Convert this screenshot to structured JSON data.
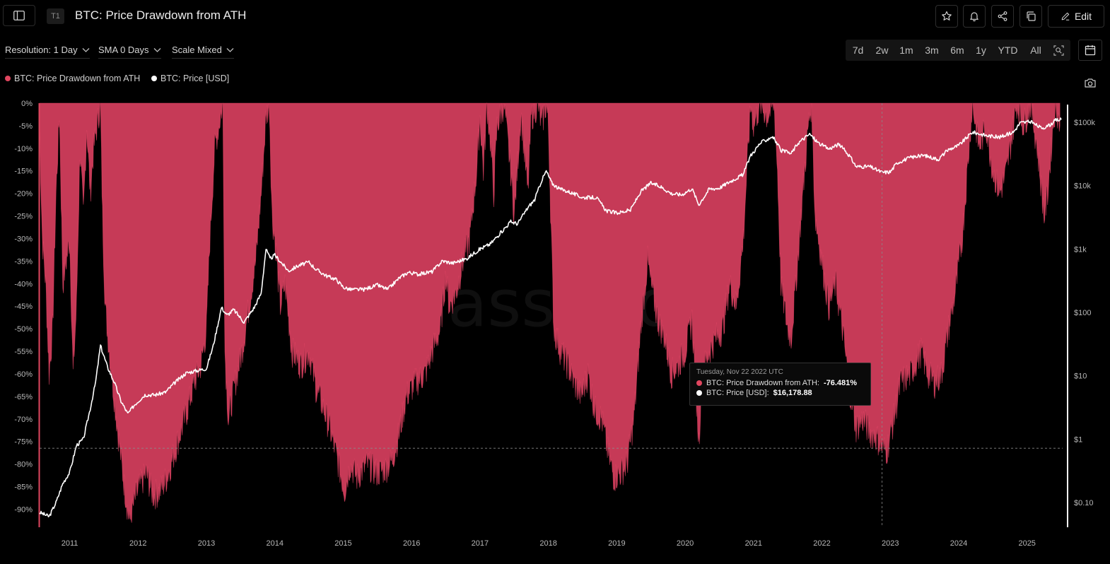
{
  "header": {
    "tier": "T1",
    "title": "BTC: Price Drawdown from ATH",
    "edit_label": "Edit"
  },
  "controls": {
    "resolution": "Resolution: 1 Day",
    "sma": "SMA 0 Days",
    "scale": "Scale Mixed",
    "ranges": [
      "7d",
      "2w",
      "1m",
      "3m",
      "6m",
      "1y",
      "YTD",
      "All"
    ]
  },
  "legend": [
    {
      "label": "BTC: Price Drawdown from ATH",
      "color": "#e0465f"
    },
    {
      "label": "BTC: Price [USD]",
      "color": "#ffffff"
    }
  ],
  "tooltip": {
    "date": "Tuesday, Nov 22 2022 UTC",
    "series1_label": "BTC: Price Drawdown from ATH:",
    "series1_value": "-76.481%",
    "series2_label": "BTC: Price [USD]:",
    "series2_value": "$16,178.88"
  },
  "watermark": "glassnode",
  "chart_data": {
    "type": "area",
    "x_ticks": [
      "2011",
      "2012",
      "2013",
      "2014",
      "2015",
      "2016",
      "2017",
      "2018",
      "2019",
      "2020",
      "2021",
      "2022",
      "2023",
      "2024",
      "2025"
    ],
    "y_left_ticks": [
      "0%",
      "-5%",
      "-10%",
      "-15%",
      "-20%",
      "-25%",
      "-30%",
      "-35%",
      "-40%",
      "-45%",
      "-50%",
      "-55%",
      "-60%",
      "-65%",
      "-70%",
      "-75%",
      "-80%",
      "-85%",
      "-90%"
    ],
    "y_right_ticks": [
      "$100k",
      "$10k",
      "$1k",
      "$100",
      "$10",
      "$1",
      "$0.10"
    ],
    "y_left_range": [
      -94,
      0
    ],
    "y_right_scale": "log",
    "colors": {
      "drawdown": "#c63a57",
      "drawdown_peak": "#ef4a6b",
      "price": "#ffffff"
    },
    "series": [
      {
        "name": "BTC: Price Drawdown from ATH",
        "unit": "%",
        "points": [
          [
            2010.56,
            -5
          ],
          [
            2010.6,
            -30
          ],
          [
            2010.65,
            -40
          ],
          [
            2010.7,
            -60
          ],
          [
            2010.75,
            -50
          ],
          [
            2010.8,
            -20
          ],
          [
            2010.85,
            -2
          ],
          [
            2010.9,
            -40
          ],
          [
            2011.0,
            -30
          ],
          [
            2011.05,
            -60
          ],
          [
            2011.1,
            -45
          ],
          [
            2011.15,
            -10
          ],
          [
            2011.2,
            -25
          ],
          [
            2011.25,
            -5
          ],
          [
            2011.3,
            -20
          ],
          [
            2011.35,
            -10
          ],
          [
            2011.42,
            -3
          ],
          [
            2011.45,
            0
          ],
          [
            2011.48,
            -25
          ],
          [
            2011.52,
            -45
          ],
          [
            2011.58,
            -55
          ],
          [
            2011.65,
            -65
          ],
          [
            2011.72,
            -75
          ],
          [
            2011.8,
            -85
          ],
          [
            2011.88,
            -93
          ],
          [
            2011.95,
            -88
          ],
          [
            2012.02,
            -85
          ],
          [
            2012.12,
            -82
          ],
          [
            2012.22,
            -87
          ],
          [
            2012.32,
            -86
          ],
          [
            2012.42,
            -83
          ],
          [
            2012.52,
            -78
          ],
          [
            2012.62,
            -73
          ],
          [
            2012.72,
            -68
          ],
          [
            2012.82,
            -62
          ],
          [
            2012.92,
            -58
          ],
          [
            2013.0,
            -50
          ],
          [
            2013.05,
            -30
          ],
          [
            2013.12,
            -10
          ],
          [
            2013.18,
            -5
          ],
          [
            2013.24,
            0
          ],
          [
            2013.27,
            -55
          ],
          [
            2013.32,
            -70
          ],
          [
            2013.42,
            -62
          ],
          [
            2013.52,
            -55
          ],
          [
            2013.62,
            -45
          ],
          [
            2013.72,
            -35
          ],
          [
            2013.8,
            -20
          ],
          [
            2013.87,
            -3
          ],
          [
            2013.92,
            0
          ],
          [
            2013.96,
            -25
          ],
          [
            2014.0,
            -30
          ],
          [
            2014.08,
            -45
          ],
          [
            2014.15,
            -40
          ],
          [
            2014.25,
            -55
          ],
          [
            2014.38,
            -58
          ],
          [
            2014.5,
            -55
          ],
          [
            2014.6,
            -63
          ],
          [
            2014.72,
            -68
          ],
          [
            2014.82,
            -73
          ],
          [
            2014.9,
            -78
          ],
          [
            2015.02,
            -86
          ],
          [
            2015.1,
            -80
          ],
          [
            2015.2,
            -83
          ],
          [
            2015.35,
            -80
          ],
          [
            2015.5,
            -82
          ],
          [
            2015.62,
            -81
          ],
          [
            2015.72,
            -79
          ],
          [
            2015.82,
            -73
          ],
          [
            2015.92,
            -65
          ],
          [
            2016.05,
            -62
          ],
          [
            2016.2,
            -60
          ],
          [
            2016.3,
            -55
          ],
          [
            2016.42,
            -50
          ],
          [
            2016.5,
            -38
          ],
          [
            2016.55,
            -45
          ],
          [
            2016.65,
            -42
          ],
          [
            2016.75,
            -35
          ],
          [
            2016.85,
            -30
          ],
          [
            2016.95,
            -15
          ],
          [
            2017.0,
            -3
          ],
          [
            2017.05,
            -15
          ],
          [
            2017.1,
            0
          ],
          [
            2017.15,
            -8
          ],
          [
            2017.2,
            -20
          ],
          [
            2017.25,
            -5
          ],
          [
            2017.35,
            0
          ],
          [
            2017.45,
            -15
          ],
          [
            2017.5,
            -25
          ],
          [
            2017.6,
            -2
          ],
          [
            2017.7,
            -20
          ],
          [
            2017.75,
            -3
          ],
          [
            2017.85,
            0
          ],
          [
            2017.9,
            -5
          ],
          [
            2017.97,
            0
          ],
          [
            2018.0,
            -5
          ],
          [
            2018.08,
            -50
          ],
          [
            2018.18,
            -55
          ],
          [
            2018.28,
            -58
          ],
          [
            2018.38,
            -62
          ],
          [
            2018.48,
            -65
          ],
          [
            2018.58,
            -60
          ],
          [
            2018.68,
            -68
          ],
          [
            2018.78,
            -70
          ],
          [
            2018.88,
            -78
          ],
          [
            2018.96,
            -83
          ],
          [
            2019.05,
            -82
          ],
          [
            2019.15,
            -80
          ],
          [
            2019.25,
            -70
          ],
          [
            2019.35,
            -50
          ],
          [
            2019.45,
            -35
          ],
          [
            2019.5,
            -40
          ],
          [
            2019.6,
            -48
          ],
          [
            2019.7,
            -52
          ],
          [
            2019.8,
            -60
          ],
          [
            2019.9,
            -58
          ],
          [
            2020.0,
            -55
          ],
          [
            2020.1,
            -48
          ],
          [
            2020.2,
            -75
          ],
          [
            2020.25,
            -60
          ],
          [
            2020.35,
            -55
          ],
          [
            2020.45,
            -52
          ],
          [
            2020.55,
            -50
          ],
          [
            2020.65,
            -40
          ],
          [
            2020.75,
            -45
          ],
          [
            2020.85,
            -30
          ],
          [
            2020.92,
            -10
          ],
          [
            2020.96,
            0
          ],
          [
            2021.0,
            -5
          ],
          [
            2021.1,
            0
          ],
          [
            2021.2,
            -3
          ],
          [
            2021.3,
            0
          ],
          [
            2021.35,
            -15
          ],
          [
            2021.4,
            -40
          ],
          [
            2021.5,
            -50
          ],
          [
            2021.55,
            -52
          ],
          [
            2021.62,
            -40
          ],
          [
            2021.72,
            -20
          ],
          [
            2021.8,
            -5
          ],
          [
            2021.85,
            0
          ],
          [
            2021.9,
            -25
          ],
          [
            2022.0,
            -35
          ],
          [
            2022.1,
            -45
          ],
          [
            2022.2,
            -40
          ],
          [
            2022.3,
            -50
          ],
          [
            2022.42,
            -65
          ],
          [
            2022.5,
            -72
          ],
          [
            2022.6,
            -70
          ],
          [
            2022.7,
            -73
          ],
          [
            2022.8,
            -74
          ],
          [
            2022.88,
            -76.5
          ],
          [
            2022.95,
            -77
          ],
          [
            2023.05,
            -70
          ],
          [
            2023.15,
            -62
          ],
          [
            2023.3,
            -60
          ],
          [
            2023.45,
            -55
          ],
          [
            2023.55,
            -60
          ],
          [
            2023.65,
            -62
          ],
          [
            2023.75,
            -60
          ],
          [
            2023.85,
            -50
          ],
          [
            2023.95,
            -42
          ],
          [
            2024.05,
            -30
          ],
          [
            2024.15,
            -10
          ],
          [
            2024.2,
            0
          ],
          [
            2024.3,
            -10
          ],
          [
            2024.4,
            -5
          ],
          [
            2024.5,
            -15
          ],
          [
            2024.6,
            -20
          ],
          [
            2024.7,
            -15
          ],
          [
            2024.8,
            -5
          ],
          [
            2024.85,
            0
          ],
          [
            2024.95,
            -5
          ],
          [
            2025.05,
            0
          ],
          [
            2025.15,
            -10
          ],
          [
            2025.25,
            -25
          ],
          [
            2025.3,
            -20
          ],
          [
            2025.38,
            -5
          ],
          [
            2025.42,
            0
          ],
          [
            2025.48,
            -5
          ]
        ]
      },
      {
        "name": "BTC: Price [USD]",
        "unit": "USD",
        "points": [
          [
            2010.56,
            0.07
          ],
          [
            2010.7,
            0.06
          ],
          [
            2010.8,
            0.1
          ],
          [
            2010.9,
            0.2
          ],
          [
            2011.0,
            0.3
          ],
          [
            2011.1,
            0.8
          ],
          [
            2011.2,
            1.0
          ],
          [
            2011.3,
            3
          ],
          [
            2011.38,
            8
          ],
          [
            2011.45,
            30
          ],
          [
            2011.55,
            14
          ],
          [
            2011.65,
            8
          ],
          [
            2011.75,
            4
          ],
          [
            2011.85,
            2.5
          ],
          [
            2011.95,
            3.5
          ],
          [
            2012.1,
            5
          ],
          [
            2012.25,
            5
          ],
          [
            2012.4,
            5.5
          ],
          [
            2012.55,
            8
          ],
          [
            2012.7,
            11
          ],
          [
            2012.85,
            12
          ],
          [
            2013.0,
            13
          ],
          [
            2013.1,
            30
          ],
          [
            2013.22,
            120
          ],
          [
            2013.3,
            90
          ],
          [
            2013.4,
            110
          ],
          [
            2013.55,
            70
          ],
          [
            2013.7,
            120
          ],
          [
            2013.8,
            200
          ],
          [
            2013.87,
            1000
          ],
          [
            2013.93,
            700
          ],
          [
            2014.0,
            800
          ],
          [
            2014.1,
            600
          ],
          [
            2014.2,
            450
          ],
          [
            2014.35,
            550
          ],
          [
            2014.5,
            620
          ],
          [
            2014.6,
            480
          ],
          [
            2014.75,
            380
          ],
          [
            2014.9,
            330
          ],
          [
            2015.0,
            250
          ],
          [
            2015.1,
            230
          ],
          [
            2015.3,
            230
          ],
          [
            2015.5,
            270
          ],
          [
            2015.65,
            230
          ],
          [
            2015.82,
            350
          ],
          [
            2015.95,
            430
          ],
          [
            2016.1,
            400
          ],
          [
            2016.3,
            440
          ],
          [
            2016.45,
            650
          ],
          [
            2016.6,
            600
          ],
          [
            2016.8,
            700
          ],
          [
            2017.0,
            1000
          ],
          [
            2017.15,
            1200
          ],
          [
            2017.3,
            1800
          ],
          [
            2017.45,
            2700
          ],
          [
            2017.55,
            2500
          ],
          [
            2017.7,
            4500
          ],
          [
            2017.8,
            6000
          ],
          [
            2017.9,
            12000
          ],
          [
            2017.97,
            17000
          ],
          [
            2018.05,
            11000
          ],
          [
            2018.15,
            9000
          ],
          [
            2018.3,
            8000
          ],
          [
            2018.5,
            6500
          ],
          [
            2018.7,
            6500
          ],
          [
            2018.85,
            4000
          ],
          [
            2019.0,
            3700
          ],
          [
            2019.2,
            4100
          ],
          [
            2019.35,
            8000
          ],
          [
            2019.5,
            11000
          ],
          [
            2019.65,
            9500
          ],
          [
            2019.8,
            7500
          ],
          [
            2019.95,
            7200
          ],
          [
            2020.1,
            9000
          ],
          [
            2020.2,
            5000
          ],
          [
            2020.35,
            8800
          ],
          [
            2020.5,
            9200
          ],
          [
            2020.65,
            11500
          ],
          [
            2020.85,
            15000
          ],
          [
            2020.95,
            29000
          ],
          [
            2021.1,
            47000
          ],
          [
            2021.28,
            60000
          ],
          [
            2021.4,
            36000
          ],
          [
            2021.55,
            32000
          ],
          [
            2021.65,
            47000
          ],
          [
            2021.82,
            65000
          ],
          [
            2021.95,
            47000
          ],
          [
            2022.1,
            38000
          ],
          [
            2022.25,
            45000
          ],
          [
            2022.4,
            30000
          ],
          [
            2022.5,
            20000
          ],
          [
            2022.7,
            20000
          ],
          [
            2022.88,
            16179
          ],
          [
            2023.0,
            16500
          ],
          [
            2023.1,
            23000
          ],
          [
            2023.3,
            28000
          ],
          [
            2023.5,
            30000
          ],
          [
            2023.7,
            26000
          ],
          [
            2023.85,
            37000
          ],
          [
            2024.0,
            43000
          ],
          [
            2024.2,
            70000
          ],
          [
            2024.4,
            62000
          ],
          [
            2024.6,
            58000
          ],
          [
            2024.8,
            70000
          ],
          [
            2024.9,
            98000
          ],
          [
            2025.05,
            102000
          ],
          [
            2025.2,
            82000
          ],
          [
            2025.3,
            85000
          ],
          [
            2025.42,
            108000
          ],
          [
            2025.5,
            110000
          ]
        ]
      }
    ],
    "crosshair": {
      "x": 2022.88,
      "y": -76.481
    }
  }
}
